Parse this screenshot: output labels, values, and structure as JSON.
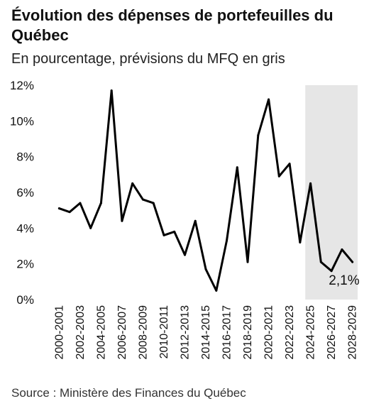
{
  "header": {
    "title": "Évolution des dépenses de portefeuilles du Québec",
    "subtitle": "En pourcentage, prévisions du MFQ en gris"
  },
  "footer": {
    "source": "Source : Ministère des Finances du Québec"
  },
  "chart_data": {
    "type": "line",
    "title": "Évolution des dépenses de portefeuilles du Québec",
    "subtitle": "En pourcentage, prévisions du MFQ en gris",
    "xlabel": "",
    "ylabel": "",
    "ylim": [
      0,
      12
    ],
    "yticks": [
      0,
      2,
      4,
      6,
      8,
      10,
      12
    ],
    "ytick_labels": [
      "0%",
      "2%",
      "4%",
      "6%",
      "8%",
      "10%",
      "12%"
    ],
    "grid": false,
    "line_color": "#000000",
    "forecast_shade_color": "#e6e6e6",
    "forecast_start": "2024-2025",
    "x": [
      "2000-2001",
      "2001-2002",
      "2002-2003",
      "2003-2004",
      "2004-2005",
      "2005-2006",
      "2006-2007",
      "2007-2008",
      "2008-2009",
      "2009-2010",
      "2010-2011",
      "2011-2012",
      "2012-2013",
      "2013-2014",
      "2014-2015",
      "2015-2016",
      "2016-2017",
      "2017-2018",
      "2018-2019",
      "2019-2020",
      "2020-2021",
      "2021-2022",
      "2022-2023",
      "2023-2024",
      "2024-2025",
      "2025-2026",
      "2026-2027",
      "2027-2028",
      "2028-2029"
    ],
    "xtick_labels": [
      "2000-2001",
      "2002-2003",
      "2004-2005",
      "2006-2007",
      "2008-2009",
      "2010-2011",
      "2012-2013",
      "2014-2015",
      "2016-2017",
      "2018-2019",
      "2020-2021",
      "2022-2023",
      "2024-2025",
      "2026-2027",
      "2028-2029"
    ],
    "series": [
      {
        "values": [
          5.1,
          4.9,
          5.4,
          4.0,
          5.4,
          11.7,
          4.4,
          6.5,
          5.6,
          5.4,
          3.6,
          3.8,
          2.5,
          4.4,
          1.7,
          0.5,
          3.3,
          7.4,
          2.1,
          9.2,
          11.2,
          6.9,
          7.6,
          3.2,
          6.5,
          2.1,
          1.6,
          2.8,
          2.1
        ]
      }
    ],
    "annotations": [
      {
        "x": "2028-2029",
        "text": "2,1%"
      }
    ]
  }
}
